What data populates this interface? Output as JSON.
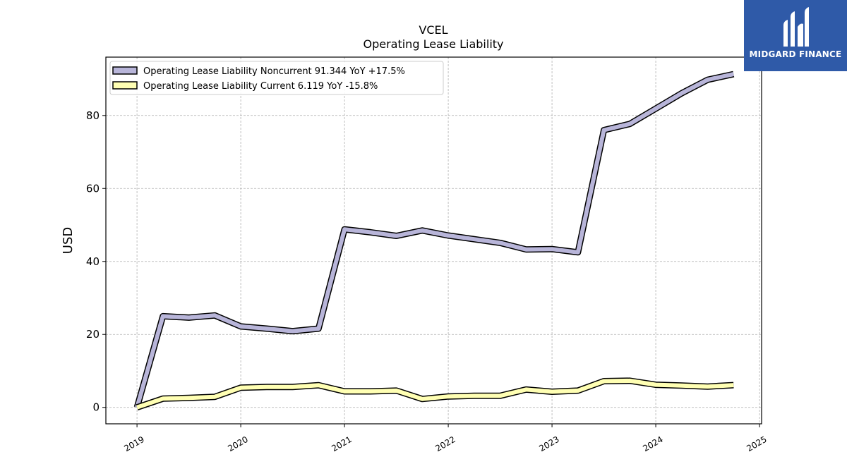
{
  "brand": {
    "name": "MIDGARD FINANCE",
    "bg_color": "#2f5aa8",
    "logo_icon": "bar-mark-icon"
  },
  "chart_data": {
    "type": "line",
    "title": "VCEL",
    "subtitle": "Operating Lease Liability",
    "xlabel": "",
    "ylabel": "USD",
    "xlim": [
      2018.7,
      2025.02
    ],
    "ylim": [
      -4.5,
      96
    ],
    "x_ticks": [
      "2019",
      "2020",
      "2021",
      "2022",
      "2023",
      "2024",
      "2025"
    ],
    "y_ticks": [
      0,
      20,
      40,
      60,
      80
    ],
    "grid": true,
    "legend_position": "top-left",
    "series": [
      {
        "name": "Operating Lease Liability Noncurrent",
        "legend_label": "Operating Lease Liability Noncurrent  91.344 YoY +17.5%",
        "color": "#b8b5d9",
        "x": [
          2019.0,
          2019.25,
          2019.5,
          2019.75,
          2020.0,
          2020.25,
          2020.5,
          2020.75,
          2021.0,
          2021.25,
          2021.5,
          2021.75,
          2022.0,
          2022.25,
          2022.5,
          2022.75,
          2023.0,
          2023.25,
          2023.5,
          2023.75,
          2024.0,
          2024.25,
          2024.5,
          2024.75
        ],
        "values": [
          0.0,
          25.0,
          24.6,
          25.2,
          22.2,
          21.6,
          20.9,
          21.6,
          48.8,
          48.0,
          47.0,
          48.5,
          47.1,
          46.1,
          45.1,
          43.3,
          43.4,
          42.5,
          76.0,
          77.7,
          81.9,
          86.1,
          89.8,
          91.344
        ]
      },
      {
        "name": "Operating Lease Liability Current",
        "legend_label": "Operating Lease Liability Current  6.119 YoY -15.8%",
        "color": "#ffffb3",
        "x": [
          2019.0,
          2019.25,
          2019.5,
          2019.75,
          2020.0,
          2020.25,
          2020.5,
          2020.75,
          2021.0,
          2021.25,
          2021.5,
          2021.75,
          2022.0,
          2022.25,
          2022.5,
          2022.75,
          2023.0,
          2023.25,
          2023.5,
          2023.75,
          2024.0,
          2024.25,
          2024.5,
          2024.75
        ],
        "values": [
          0.0,
          2.4,
          2.6,
          2.9,
          5.4,
          5.6,
          5.6,
          6.1,
          4.4,
          4.4,
          4.6,
          2.3,
          3.0,
          3.2,
          3.2,
          4.9,
          4.3,
          4.6,
          7.2,
          7.3,
          6.2,
          6.0,
          5.7,
          6.119
        ]
      }
    ]
  }
}
